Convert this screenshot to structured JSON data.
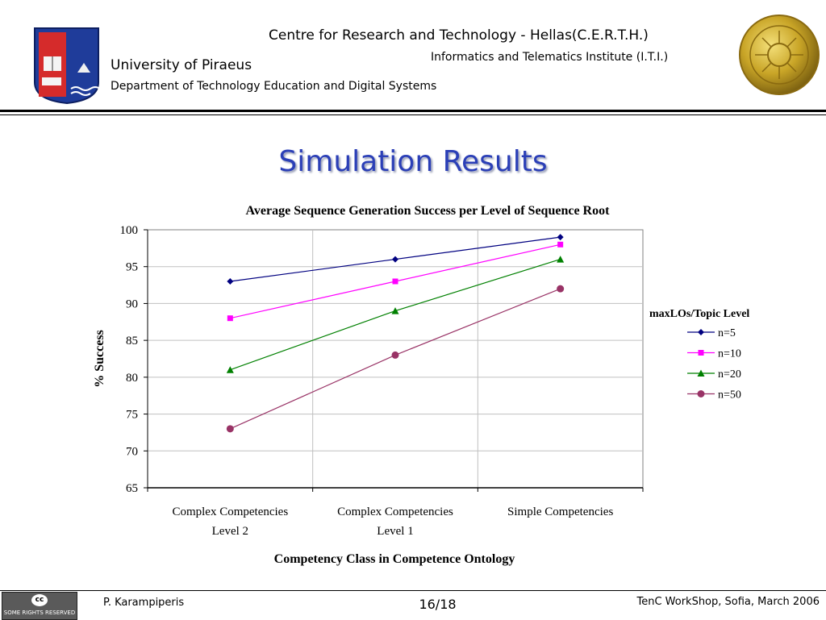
{
  "header": {
    "institution": "Centre for Research and Technology - Hellas(C.E.R.T.H.)",
    "institute": "Informatics and Telematics Institute (I.T.I.)",
    "university": "University of Piraeus",
    "department": "Department of Technology Education and Digital Systems"
  },
  "slide": {
    "title": "Simulation Results"
  },
  "footer": {
    "author": "P. Karampiperis",
    "page": "16/18",
    "event": "TenC WorkShop, Sofia, March 2006",
    "license_badge": "SOME RIGHTS RESERVED",
    "license_mark": "cc"
  },
  "colors": {
    "title": "#2b3fb7",
    "grid": "#c0c0c0"
  },
  "chart_data": {
    "type": "line",
    "title": "Average Sequence Generation Success per Level of Sequence Root",
    "xlabel": "Competency Class in Competence Ontology",
    "ylabel": "% Success",
    "categories": [
      [
        "Complex Competencies",
        "Level 2"
      ],
      [
        "Complex Competencies",
        "Level 1"
      ],
      [
        "Simple Competencies"
      ]
    ],
    "ylim": [
      65,
      100
    ],
    "yticks": [
      65,
      70,
      75,
      80,
      85,
      90,
      95,
      100
    ],
    "grid": true,
    "legend": {
      "title": "maxLOs/Topic Level",
      "position": "right"
    },
    "series": [
      {
        "name": "n=5",
        "values": [
          93,
          96,
          99
        ],
        "color": "#000080",
        "marker": "diamond"
      },
      {
        "name": "n=10",
        "values": [
          88,
          93,
          98
        ],
        "color": "#ff00ff",
        "marker": "square"
      },
      {
        "name": "n=20",
        "values": [
          81,
          89,
          96
        ],
        "color": "#008000",
        "marker": "triangle"
      },
      {
        "name": "n=50",
        "values": [
          73,
          83,
          92
        ],
        "color": "#993366",
        "marker": "circle"
      }
    ]
  }
}
